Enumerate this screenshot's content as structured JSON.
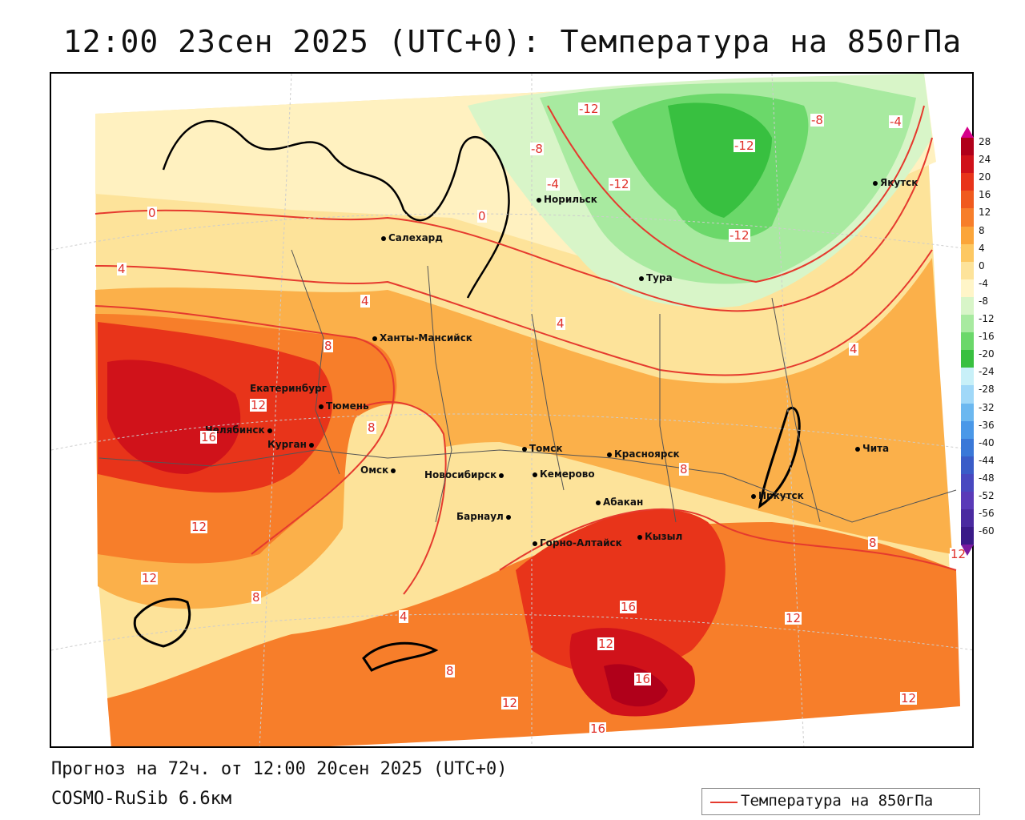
{
  "title": "12:00 23сен 2025 (UTC+0): Температура на 850гПа",
  "footer": {
    "forecast": "Прогноз на 72ч. от 12:00 20сен 2025 (UTC+0)",
    "model": "COSMO-RuSib 6.6км"
  },
  "legend": {
    "label": "Температура на 850гПа",
    "line_color": "#e53a2e"
  },
  "colorbar": {
    "levels": [
      "28",
      "24",
      "20",
      "16",
      "12",
      "8",
      "4",
      "0",
      "-4",
      "-8",
      "-12",
      "-16",
      "-20",
      "-24",
      "-28",
      "-32",
      "-36",
      "-40",
      "-44",
      "-48",
      "-52",
      "-56",
      "-60"
    ],
    "colors": [
      "#b0001a",
      "#d0121a",
      "#e8341a",
      "#f05a1e",
      "#f77e2a",
      "#fba53a",
      "#fdc862",
      "#fde39a",
      "#fff5c8",
      "#d8f5c8",
      "#a8eaa0",
      "#6bd86a",
      "#38c040",
      "#c8f0f8",
      "#a0d8f8",
      "#6cb8f0",
      "#4a98e8",
      "#3a78d8",
      "#3a5cc8",
      "#4848c0",
      "#5a3ab8",
      "#4a2aa0",
      "#3a1a88"
    ]
  },
  "cities": [
    {
      "name": "Норильск"
    },
    {
      "name": "Якутск"
    },
    {
      "name": "Салехард"
    },
    {
      "name": "Тура"
    },
    {
      "name": "Ханты-Мансийск"
    },
    {
      "name": "Екатеринбург"
    },
    {
      "name": "Тюмень"
    },
    {
      "name": "Челябинск"
    },
    {
      "name": "Курган"
    },
    {
      "name": "Омск"
    },
    {
      "name": "Томск"
    },
    {
      "name": "Красноярск"
    },
    {
      "name": "Новосибирск"
    },
    {
      "name": "Кемерово"
    },
    {
      "name": "Абакан"
    },
    {
      "name": "Барнаул"
    },
    {
      "name": "Горно-Алтайск"
    },
    {
      "name": "Кызыл"
    },
    {
      "name": "Иркутск"
    },
    {
      "name": "Чита"
    }
  ],
  "contour_labels": [
    "-12",
    "-8",
    "-4",
    "0",
    "-12",
    "-12",
    "-8",
    "-4",
    "-12",
    "0",
    "4",
    "4",
    "8",
    "4",
    "8",
    "12",
    "16",
    "12",
    "12",
    "8",
    "4",
    "8",
    "12",
    "12",
    "16",
    "16",
    "12",
    "12",
    "16",
    "8",
    "12",
    "4",
    "8"
  ]
}
